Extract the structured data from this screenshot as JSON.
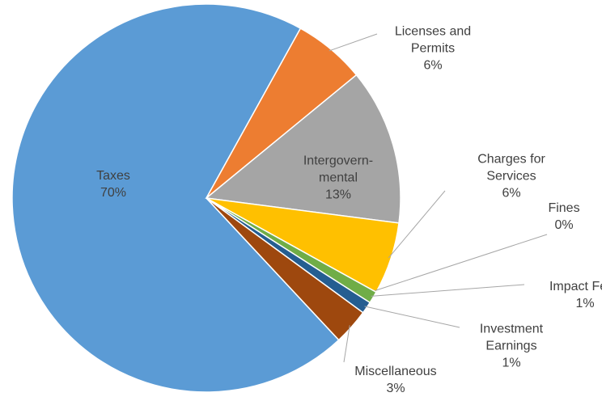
{
  "chart_data": {
    "type": "pie",
    "categories": [
      "Taxes",
      "Licenses and Permits",
      "Intergovern-mental",
      "Charges for Services",
      "Fines",
      "Impact Fees",
      "Investment Earnings",
      "Miscellaneous"
    ],
    "values": [
      70,
      6,
      13,
      6,
      0,
      1,
      1,
      3
    ],
    "value_labels": [
      "70%",
      "6%",
      "13%",
      "6%",
      "0%",
      "1%",
      "1%",
      "3%"
    ],
    "colors": [
      "#5b9bd5",
      "#ed7d31",
      "#a5a5a5",
      "#ffc000",
      "#4472c4",
      "#70ad47",
      "#255e91",
      "#9e480e"
    ]
  }
}
